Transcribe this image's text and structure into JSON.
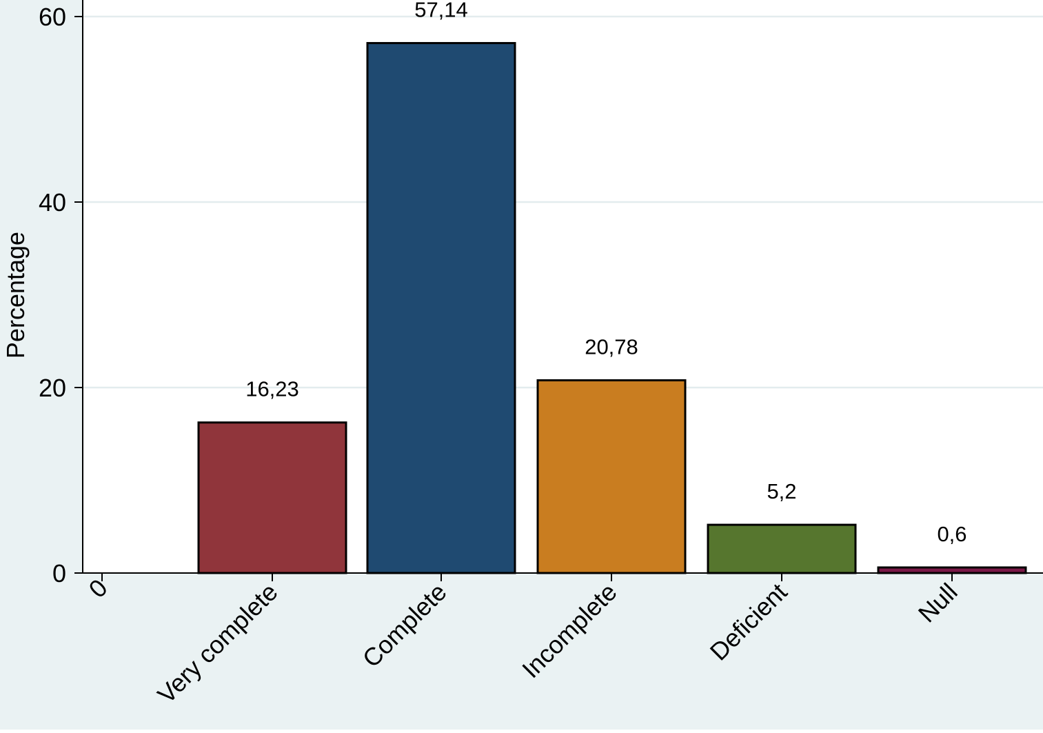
{
  "colors": {
    "outer_background": "#eaf2f3",
    "plot_background": "#ffffff",
    "gridline": "#e3ecee",
    "bar_outline": "#000000"
  },
  "chart_data": {
    "type": "bar",
    "ylabel": "Percentage",
    "xlabel": "",
    "ylim": [
      0,
      60
    ],
    "yticks": [
      "0",
      "20",
      "40",
      "60"
    ],
    "grid": true,
    "categories": [
      "0",
      "Very complete",
      "Complete",
      "Incomplete",
      "Deficient",
      "Null"
    ],
    "values": [
      0,
      16.23,
      57.14,
      20.78,
      5.2,
      0.6
    ],
    "data_labels": [
      "",
      "16,23",
      "57,14",
      "20,78",
      "5,2",
      "0,6"
    ],
    "bar_colors": [
      "#ffffff",
      "#90353b",
      "#1f4a71",
      "#c97d20",
      "#56762e",
      "#7a1847"
    ]
  }
}
